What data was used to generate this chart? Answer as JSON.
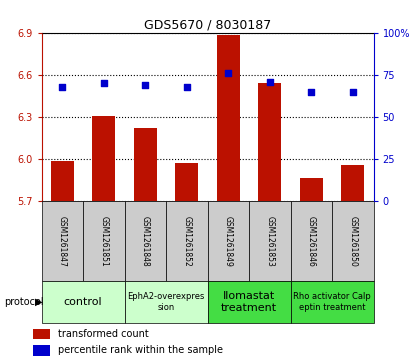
{
  "title": "GDS5670 / 8030187",
  "samples": [
    "GSM1261847",
    "GSM1261851",
    "GSM1261848",
    "GSM1261852",
    "GSM1261849",
    "GSM1261853",
    "GSM1261846",
    "GSM1261850"
  ],
  "bar_values": [
    5.99,
    6.31,
    6.22,
    5.97,
    6.88,
    6.54,
    5.87,
    5.96
  ],
  "dot_values": [
    68,
    70,
    69,
    68,
    76,
    71,
    65,
    65
  ],
  "ylim_left": [
    5.7,
    6.9
  ],
  "ylim_right": [
    0,
    100
  ],
  "yticks_left": [
    5.7,
    6.0,
    6.3,
    6.6,
    6.9
  ],
  "yticks_right": [
    0,
    25,
    50,
    75,
    100
  ],
  "ytick_labels_right": [
    "0",
    "25",
    "50",
    "75",
    "100%"
  ],
  "bar_color": "#bb1100",
  "dot_color": "#0000cc",
  "protocols": [
    {
      "label": "control",
      "start": 0,
      "end": 2,
      "color": "#ccffcc",
      "fontsize": 8
    },
    {
      "label": "EphA2-overexpres\nsion",
      "start": 2,
      "end": 4,
      "color": "#ccffcc",
      "fontsize": 6
    },
    {
      "label": "Ilomastat\ntreatment",
      "start": 4,
      "end": 6,
      "color": "#44dd44",
      "fontsize": 8
    },
    {
      "label": "Rho activator Calp\neptin treatment",
      "start": 6,
      "end": 8,
      "color": "#44dd44",
      "fontsize": 6
    }
  ],
  "protocol_label": "protocol",
  "legend_bar_label": "transformed count",
  "legend_dot_label": "percentile rank within the sample",
  "bar_bottom": 5.7,
  "sample_box_color": "#cccccc",
  "background_color": "#ffffff"
}
